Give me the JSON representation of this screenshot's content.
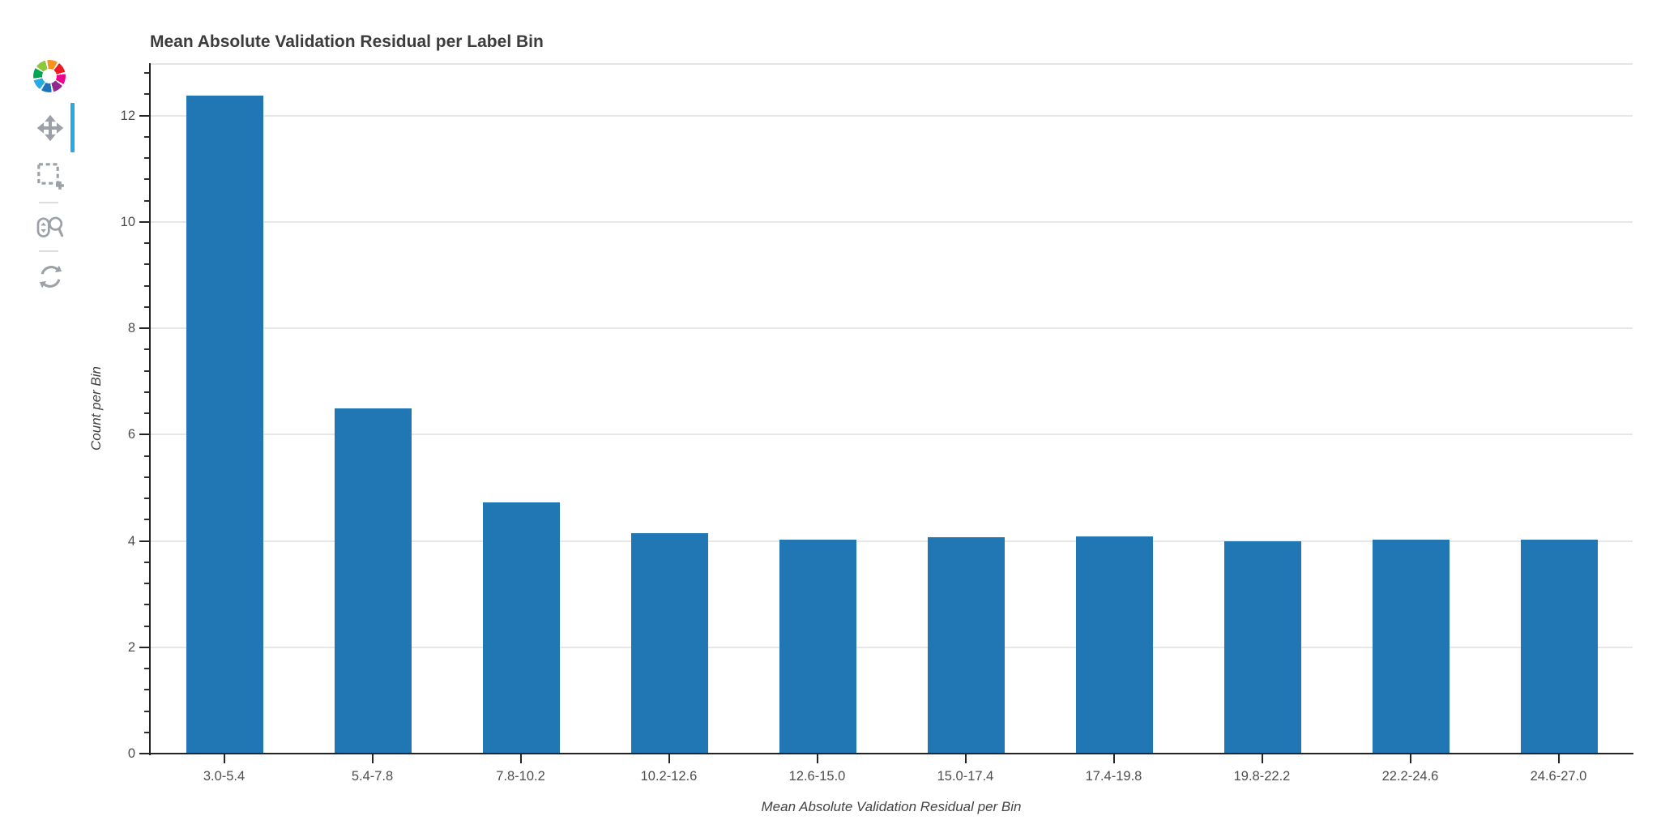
{
  "toolbar": {
    "logo": "bokeh-logo",
    "tools": [
      {
        "id": "pan",
        "icon": "pan-icon",
        "active": true
      },
      {
        "id": "box-zoom",
        "icon": "box-zoom-icon",
        "active": false
      },
      {
        "id": "wheel-zoom",
        "icon": "wheel-zoom-icon",
        "active": false
      },
      {
        "id": "reset",
        "icon": "reset-icon",
        "active": false
      }
    ],
    "active_indicator_color": "#26aae1",
    "icon_color": "#9ba1a6"
  },
  "chart_data": {
    "type": "bar",
    "title": "Mean Absolute Validation Residual per Label Bin",
    "xlabel": "Mean Absolute Validation Residual per Bin",
    "ylabel": "Count per Bin",
    "categories": [
      "3.0-5.4",
      "5.4-7.8",
      "7.8-10.2",
      "10.2-12.6",
      "12.6-15.0",
      "15.0-17.4",
      "17.4-19.8",
      "19.8-22.2",
      "22.2-24.6",
      "24.6-27.0"
    ],
    "values": [
      12.37,
      6.5,
      4.72,
      4.15,
      4.03,
      4.07,
      4.08,
      4.0,
      4.03,
      4.02
    ],
    "ylim": [
      0,
      12.97
    ],
    "yticks": [
      0,
      2,
      4,
      6,
      8,
      10,
      12
    ],
    "y_minor_tick_step": 0.4,
    "bar_color": "#2077b4",
    "grid": true,
    "legend": "none",
    "grid_color": "#e7e7e7",
    "axis_color": "#242424",
    "tick_label_color": "#4d4d4d",
    "title_color": "#3c3c3c"
  }
}
